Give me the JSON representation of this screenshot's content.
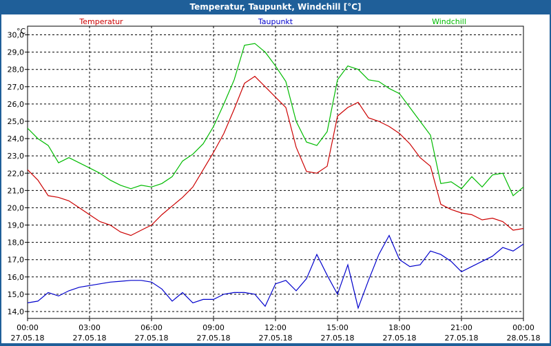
{
  "window": {
    "title": "Temperatur, Taupunkt, Windchill [°C]"
  },
  "chart_data": {
    "type": "line",
    "title": "Temperatur, Taupunkt, Windchill [°C]",
    "unit": "°C",
    "ylim": [
      13.6,
      30.5
    ],
    "yticks": [
      "14,0",
      "15,0",
      "16,0",
      "17,0",
      "18,0",
      "19,0",
      "20,0",
      "21,0",
      "22,0",
      "23,0",
      "24,0",
      "25,0",
      "26,0",
      "27,0",
      "28,0",
      "29,0",
      "30,0"
    ],
    "xlim": [
      0,
      24
    ],
    "xticks": [
      {
        "time": "00:00",
        "date": "27.05.18"
      },
      {
        "time": "03:00",
        "date": "27.05.18"
      },
      {
        "time": "06:00",
        "date": "27.05.18"
      },
      {
        "time": "09:00",
        "date": "27.05.18"
      },
      {
        "time": "12:00",
        "date": "27.05.18"
      },
      {
        "time": "15:00",
        "date": "27.05.18"
      },
      {
        "time": "18:00",
        "date": "27.05.18"
      },
      {
        "time": "21:00",
        "date": "27.05.18"
      },
      {
        "time": "00:00",
        "date": "28.05.18"
      }
    ],
    "grid": true,
    "legend": "top",
    "series": [
      {
        "name": "Temperatur",
        "color": "#cc0000",
        "x": [
          0,
          0.5,
          1,
          1.5,
          2,
          2.5,
          3,
          3.5,
          4,
          4.5,
          5,
          5.5,
          6,
          6.5,
          7,
          7.5,
          8,
          8.5,
          9,
          9.5,
          10,
          10.5,
          11,
          11.5,
          12,
          12.5,
          13,
          13.5,
          14,
          14.5,
          15,
          15.5,
          16,
          16.5,
          17,
          17.5,
          18,
          18.5,
          19,
          19.5,
          20,
          20.5,
          21,
          21.5,
          22,
          22.5,
          23,
          23.5,
          24
        ],
        "values": [
          22.2,
          21.6,
          20.7,
          20.6,
          20.4,
          20.0,
          19.6,
          19.2,
          19.0,
          18.6,
          18.4,
          18.7,
          19.0,
          19.6,
          20.1,
          20.6,
          21.2,
          22.2,
          23.2,
          24.3,
          25.7,
          27.2,
          27.6,
          27.0,
          26.4,
          25.8,
          23.5,
          22.1,
          22.0,
          22.4,
          25.3,
          25.8,
          26.1,
          25.2,
          25.0,
          24.7,
          24.3,
          23.7,
          22.9,
          22.4,
          20.2,
          19.9,
          19.7,
          19.6,
          19.3,
          19.4,
          19.2,
          18.7,
          18.8
        ]
      },
      {
        "name": "Taupunkt",
        "color": "#0000cc",
        "x": [
          0,
          0.5,
          1,
          1.5,
          2,
          2.5,
          3,
          3.5,
          4,
          4.5,
          5,
          5.5,
          6,
          6.5,
          7,
          7.5,
          8,
          8.5,
          9,
          9.5,
          10,
          10.5,
          11,
          11.5,
          12,
          12.5,
          13,
          13.5,
          14,
          14.5,
          15,
          15.5,
          16,
          16.5,
          17,
          17.5,
          18,
          18.5,
          19,
          19.5,
          20,
          20.5,
          21,
          21.5,
          22,
          22.5,
          23,
          23.5,
          24
        ],
        "values": [
          14.5,
          14.6,
          15.1,
          14.9,
          15.2,
          15.4,
          15.5,
          15.6,
          15.7,
          15.75,
          15.8,
          15.8,
          15.7,
          15.3,
          14.6,
          15.1,
          14.5,
          14.7,
          14.7,
          15.0,
          15.1,
          15.1,
          15.0,
          14.3,
          15.6,
          15.8,
          15.2,
          15.9,
          17.3,
          16.1,
          15.0,
          16.7,
          14.2,
          15.8,
          17.3,
          18.4,
          17.0,
          16.6,
          16.7,
          17.5,
          17.3,
          16.9,
          16.3,
          16.6,
          16.9,
          17.2,
          17.7,
          17.5,
          17.9
        ]
      },
      {
        "name": "Windchill",
        "color": "#00bb00",
        "x": [
          0,
          0.5,
          1,
          1.5,
          2,
          2.5,
          3,
          3.5,
          4,
          4.5,
          5,
          5.5,
          6,
          6.5,
          7,
          7.5,
          8,
          8.5,
          9,
          9.5,
          10,
          10.5,
          11,
          11.5,
          12,
          12.5,
          13,
          13.5,
          14,
          14.5,
          15,
          15.5,
          16,
          16.5,
          17,
          17.5,
          18,
          18.5,
          19,
          19.5,
          20,
          20.5,
          21,
          21.5,
          22,
          22.5,
          23,
          23.5,
          24
        ],
        "values": [
          24.6,
          24.0,
          23.6,
          22.6,
          22.9,
          22.6,
          22.3,
          22.0,
          21.6,
          21.3,
          21.1,
          21.3,
          21.2,
          21.4,
          21.8,
          22.7,
          23.1,
          23.7,
          24.7,
          26.0,
          27.4,
          29.4,
          29.5,
          29.0,
          28.2,
          27.3,
          25.0,
          23.8,
          23.6,
          24.4,
          27.4,
          28.2,
          28.0,
          27.4,
          27.3,
          26.9,
          26.6,
          25.8,
          25.0,
          24.2,
          21.4,
          21.5,
          21.1,
          21.8,
          21.2,
          21.9,
          22.0,
          20.7,
          21.2
        ]
      }
    ]
  }
}
